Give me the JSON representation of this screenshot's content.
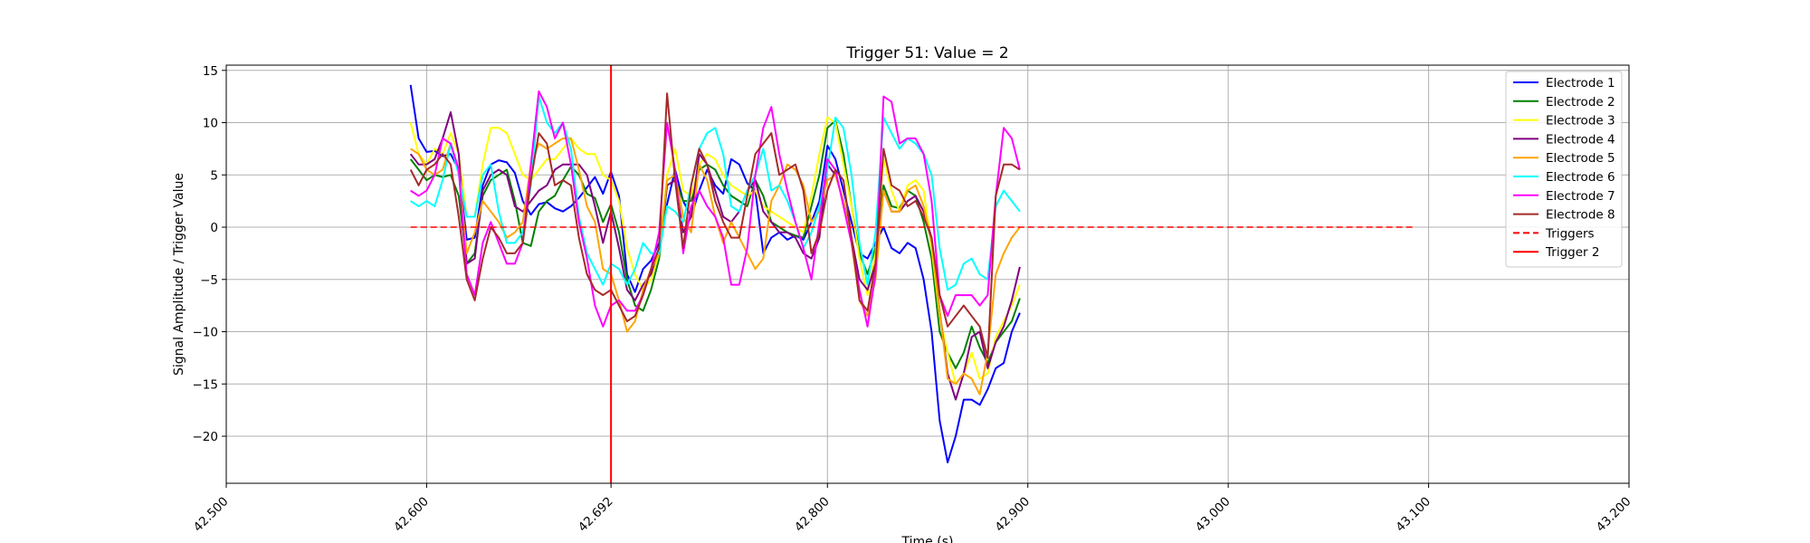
{
  "chart_data": {
    "type": "line",
    "title": "Trigger 51: Value = 2",
    "xlabel": "Time (s)",
    "ylabel": "Signal Amplitude / Trigger Value",
    "xlim": [
      42.5,
      43.2
    ],
    "ylim": [
      -24.5,
      15.5
    ],
    "grid": true,
    "legend_position": "upper right",
    "xticks": [
      42.5,
      42.6,
      42.692,
      42.8,
      42.9,
      43.0,
      43.1,
      43.2
    ],
    "xtick_labels": [
      "42.500",
      "42.600",
      "42.692",
      "42.800",
      "42.900",
      "43.000",
      "43.100",
      "43.200"
    ],
    "yticks": [
      15,
      10,
      5,
      0,
      -5,
      -10,
      -15,
      -20
    ],
    "ytick_labels": [
      "15",
      "10",
      "5",
      "0",
      "−5",
      "−10",
      "−15",
      "−20"
    ],
    "x_start": 42.592,
    "x_step": 0.004,
    "series": [
      {
        "name": "Electrode 1",
        "color": "#0000ff",
        "style": "solid",
        "values": [
          13.6,
          8.5,
          7.2,
          7.3,
          6.8,
          7.0,
          5.5,
          -1.2,
          -1.0,
          4.0,
          6.0,
          6.4,
          6.2,
          5.2,
          2.5,
          1.2,
          2.2,
          2.4,
          1.8,
          1.5,
          2.0,
          2.8,
          3.8,
          4.8,
          3.2,
          5.3,
          3.0,
          -4.5,
          -6.2,
          -4.0,
          -3.2,
          -1.5,
          2.2,
          5.5,
          2.5,
          1.0,
          3.5,
          5.5,
          4.0,
          3.2,
          6.5,
          6.0,
          4.2,
          3.5,
          -2.5,
          -1.0,
          -0.5,
          -1.2,
          -0.8,
          -1.2,
          0.5,
          2.5,
          7.8,
          6.5,
          3.5,
          0.5,
          -2.5,
          -3.0,
          -1.5,
          0.0,
          -2.0,
          -2.5,
          -1.5,
          -2.0,
          -5.0,
          -10.0,
          -18.5,
          -22.5,
          -20.0,
          -16.5,
          -16.5,
          -17.0,
          -15.5,
          -13.5,
          -13.0,
          -10.0,
          -8.2
        ]
      },
      {
        "name": "Electrode 2",
        "color": "#008000",
        "style": "solid",
        "values": [
          6.5,
          5.5,
          4.5,
          5.0,
          4.8,
          5.0,
          3.0,
          -3.5,
          -2.5,
          3.0,
          4.5,
          5.0,
          5.5,
          2.5,
          -1.5,
          -1.8,
          1.5,
          2.5,
          3.0,
          4.5,
          5.8,
          5.0,
          3.2,
          2.8,
          0.5,
          2.2,
          -0.5,
          -5.0,
          -7.5,
          -8.0,
          -6.0,
          -3.0,
          4.0,
          4.5,
          2.5,
          2.5,
          5.5,
          6.0,
          5.5,
          4.0,
          3.0,
          2.5,
          2.0,
          4.5,
          3.0,
          0.5,
          0.0,
          -0.5,
          -0.8,
          -1.0,
          2.0,
          5.0,
          9.5,
          10.2,
          7.0,
          2.0,
          -2.5,
          -4.5,
          -2.0,
          4.0,
          2.0,
          1.8,
          3.5,
          3.0,
          0.5,
          -3.0,
          -10.0,
          -12.0,
          -13.5,
          -12.0,
          -9.5,
          -11.5,
          -13.0,
          -11.0,
          -10.0,
          -9.0,
          -6.8
        ]
      },
      {
        "name": "Electrode 3",
        "color": "#ffff00",
        "style": "solid",
        "values": [
          10.0,
          7.0,
          6.0,
          7.5,
          7.0,
          9.0,
          7.0,
          1.0,
          1.0,
          6.0,
          9.5,
          9.5,
          9.0,
          7.0,
          5.0,
          4.5,
          5.5,
          6.5,
          6.5,
          7.5,
          8.5,
          7.5,
          7.0,
          7.0,
          5.0,
          4.5,
          2.5,
          -2.0,
          -4.5,
          -6.0,
          -5.0,
          -2.5,
          5.0,
          7.5,
          3.5,
          3.0,
          6.0,
          7.0,
          6.5,
          5.0,
          4.0,
          3.5,
          3.0,
          3.5,
          2.0,
          1.5,
          1.0,
          0.5,
          0.0,
          -0.5,
          3.0,
          7.0,
          10.5,
          10.0,
          6.0,
          2.0,
          -3.0,
          -6.5,
          -2.5,
          6.5,
          3.5,
          1.5,
          4.0,
          4.5,
          3.5,
          -2.0,
          -8.5,
          -12.0,
          -15.0,
          -14.0,
          -12.0,
          -14.5,
          -14.0,
          -10.5,
          -9.0,
          -7.5,
          -5.5
        ]
      },
      {
        "name": "Electrode 4",
        "color": "#800080",
        "style": "solid",
        "values": [
          7.0,
          6.0,
          6.0,
          6.5,
          8.5,
          11.0,
          7.0,
          -3.5,
          -3.0,
          3.5,
          5.0,
          5.5,
          5.0,
          2.0,
          1.5,
          2.5,
          3.5,
          4.0,
          5.5,
          6.0,
          6.0,
          6.0,
          5.0,
          2.0,
          -1.5,
          1.5,
          -2.0,
          -6.0,
          -7.0,
          -5.5,
          -4.5,
          -2.0,
          4.0,
          4.5,
          -0.5,
          1.0,
          7.0,
          6.0,
          3.5,
          1.0,
          0.5,
          1.5,
          3.5,
          4.5,
          1.5,
          0.5,
          -0.5,
          -0.5,
          -1.0,
          -2.5,
          -3.0,
          -1.0,
          6.0,
          5.0,
          2.5,
          -1.0,
          -5.0,
          -6.0,
          -3.5,
          3.5,
          1.5,
          1.5,
          2.5,
          3.0,
          1.5,
          -1.0,
          -8.0,
          -14.0,
          -16.5,
          -14.0,
          -10.5,
          -10.0,
          -13.5,
          -11.0,
          -9.5,
          -7.0,
          -3.8
        ]
      },
      {
        "name": "Electrode 5",
        "color": "#ffa500",
        "style": "solid",
        "values": [
          7.5,
          7.0,
          5.5,
          5.0,
          5.5,
          8.0,
          5.5,
          -2.5,
          -0.5,
          2.5,
          1.5,
          0.5,
          -1.0,
          -0.5,
          0.5,
          6.0,
          8.0,
          7.5,
          8.0,
          8.5,
          8.5,
          5.5,
          2.0,
          0.5,
          -4.0,
          -4.5,
          -7.0,
          -10.0,
          -9.0,
          -6.0,
          -4.0,
          -2.5,
          4.5,
          5.0,
          1.0,
          -0.5,
          6.0,
          4.5,
          1.0,
          -1.5,
          0.5,
          -1.0,
          -2.5,
          -4.0,
          -3.0,
          2.5,
          4.0,
          6.0,
          5.5,
          4.0,
          0.5,
          1.5,
          4.5,
          5.0,
          2.5,
          -1.5,
          -7.0,
          -8.5,
          -5.0,
          3.5,
          1.5,
          1.5,
          3.5,
          4.0,
          2.0,
          -1.5,
          -8.0,
          -14.5,
          -15.0,
          -14.0,
          -14.5,
          -16.0,
          -12.0,
          -4.5,
          -2.5,
          -1.0,
          0.0
        ]
      },
      {
        "name": "Electrode 6",
        "color": "#00ffff",
        "style": "solid",
        "values": [
          2.5,
          2.0,
          2.5,
          2.0,
          4.5,
          8.0,
          5.0,
          1.0,
          1.0,
          5.0,
          6.0,
          1.5,
          -1.5,
          -1.5,
          -0.5,
          4.0,
          12.5,
          10.0,
          9.0,
          10.0,
          7.5,
          1.0,
          -2.5,
          -4.0,
          -5.5,
          -3.5,
          -4.0,
          -5.5,
          -4.0,
          -1.5,
          -2.5,
          -2.5,
          2.0,
          1.5,
          0.5,
          4.0,
          7.5,
          9.0,
          9.5,
          7.0,
          2.0,
          1.5,
          3.5,
          5.0,
          7.5,
          3.5,
          4.0,
          2.5,
          0.5,
          -2.0,
          -0.5,
          2.0,
          5.5,
          10.5,
          9.5,
          5.0,
          -1.5,
          -5.5,
          -0.5,
          10.5,
          9.0,
          7.5,
          8.5,
          8.0,
          7.0,
          5.0,
          -2.0,
          -6.0,
          -5.5,
          -3.5,
          -3.0,
          -4.5,
          -5.0,
          2.0,
          3.5,
          2.5,
          1.5
        ]
      },
      {
        "name": "Electrode 7",
        "color": "#ff00ff",
        "style": "solid",
        "values": [
          3.5,
          3.0,
          3.5,
          5.0,
          8.5,
          8.0,
          5.5,
          -4.5,
          -6.5,
          -1.5,
          0.5,
          -1.5,
          -3.5,
          -3.5,
          -1.5,
          6.0,
          13.0,
          11.5,
          8.5,
          10.0,
          6.0,
          0.5,
          -3.0,
          -7.5,
          -9.5,
          -7.5,
          -7.0,
          -8.0,
          -8.0,
          -6.5,
          -4.0,
          -0.5,
          10.0,
          5.5,
          -2.5,
          2.0,
          3.5,
          2.0,
          1.0,
          -1.0,
          -5.5,
          -5.5,
          -2.0,
          5.0,
          9.5,
          11.5,
          7.0,
          3.5,
          0.5,
          -2.0,
          -5.0,
          0.5,
          6.5,
          5.5,
          2.0,
          -1.5,
          -6.0,
          -9.5,
          -4.5,
          12.5,
          12.0,
          8.0,
          8.5,
          8.5,
          7.0,
          2.5,
          -6.5,
          -8.5,
          -6.5,
          -6.5,
          -6.5,
          -7.5,
          -6.5,
          3.0,
          9.5,
          8.5,
          5.5
        ]
      },
      {
        "name": "Electrode 8",
        "color": "#a52a2a",
        "style": "solid",
        "values": [
          5.5,
          4.0,
          5.5,
          6.0,
          7.0,
          6.0,
          1.0,
          -5.0,
          -7.0,
          -3.0,
          0.0,
          -1.0,
          -2.5,
          -2.5,
          -1.5,
          4.5,
          9.0,
          8.0,
          4.0,
          4.5,
          4.0,
          -1.0,
          -4.5,
          -6.0,
          -6.5,
          -6.0,
          -7.5,
          -9.0,
          -8.5,
          -6.5,
          -4.0,
          -2.0,
          12.8,
          4.5,
          -2.0,
          4.0,
          7.5,
          6.0,
          2.5,
          0.5,
          -1.0,
          -1.0,
          3.0,
          7.0,
          8.0,
          9.0,
          5.0,
          5.5,
          6.0,
          3.5,
          -2.5,
          -0.5,
          3.5,
          5.5,
          4.5,
          -1.0,
          -7.0,
          -8.0,
          -3.5,
          7.5,
          4.0,
          3.5,
          2.0,
          2.5,
          1.0,
          -1.0,
          -6.5,
          -9.5,
          -8.5,
          -7.5,
          -8.5,
          -9.5,
          -12.5,
          3.0,
          6.0,
          6.0,
          5.5
        ]
      },
      {
        "name": "Triggers",
        "color": "#ff0000",
        "style": "dashed",
        "x": [
          42.592,
          43.092
        ],
        "values": [
          0,
          0
        ]
      },
      {
        "name": "Trigger 2",
        "color": "#ff0000",
        "style": "solid",
        "type": "vline",
        "x": 42.692
      }
    ]
  }
}
